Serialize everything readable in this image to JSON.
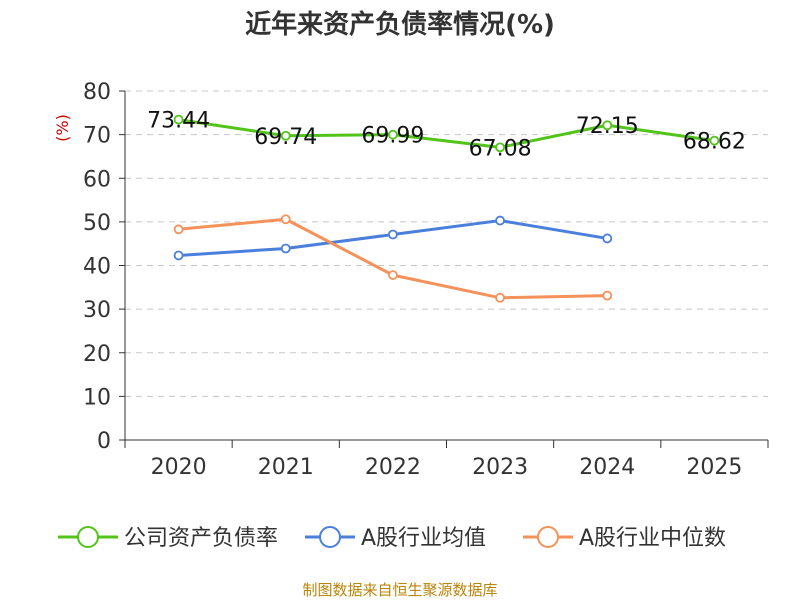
{
  "chart_data": {
    "type": "line",
    "title": "近年来资产负债率情况(%)",
    "ylabel": "(%)",
    "xlabel": "",
    "categories": [
      "2020",
      "2021",
      "2022",
      "2023",
      "2024",
      "2025"
    ],
    "ylim": [
      0,
      80
    ],
    "yticks": [
      0,
      10,
      20,
      30,
      40,
      50,
      60,
      70,
      80
    ],
    "grid": true,
    "legend_position": "bottom",
    "series": [
      {
        "name": "公司资产负债率",
        "color": "#52c41a",
        "values": [
          73.44,
          69.74,
          69.99,
          67.08,
          72.15,
          68.62
        ],
        "labels": [
          "73.44",
          "69.74",
          "69.99",
          "67.08",
          "72.15",
          "68.62"
        ]
      },
      {
        "name": "A股行业均值",
        "color": "#4a7fdc",
        "values": [
          42.3,
          43.9,
          47.1,
          50.3,
          46.2,
          null
        ]
      },
      {
        "name": "A股行业中位数",
        "color": "#f5915a",
        "values": [
          48.3,
          50.6,
          37.8,
          32.6,
          33.1,
          null
        ]
      }
    ],
    "source": "制图数据来自恒生聚源数据库"
  }
}
